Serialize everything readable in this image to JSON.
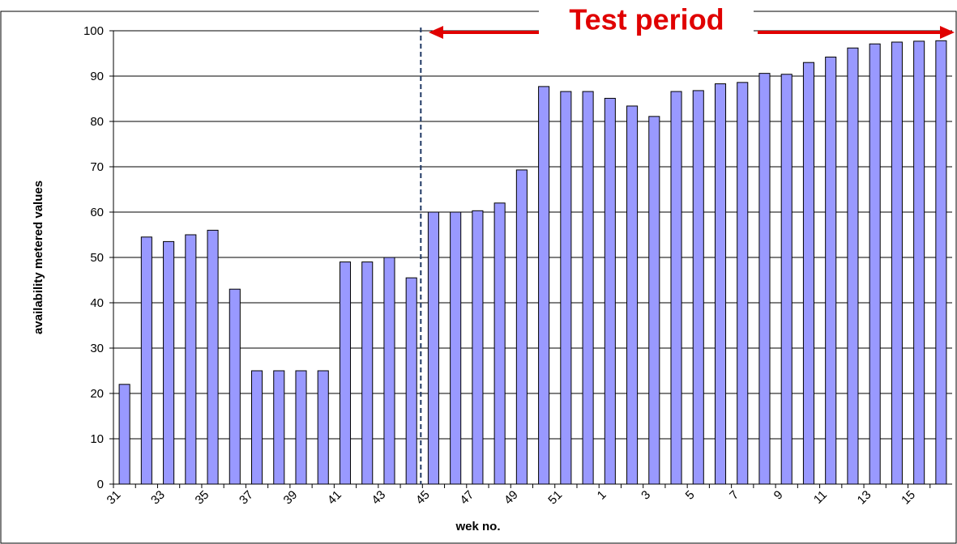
{
  "chart_data": {
    "type": "bar",
    "title": "Test period",
    "x_label": "wek no.",
    "y_label": "availability metered values",
    "categories": [
      "31",
      null,
      "33",
      null,
      "35",
      null,
      "37",
      null,
      "39",
      null,
      "41",
      null,
      "43",
      null,
      "45",
      null,
      "47",
      null,
      "49",
      null,
      "51",
      null,
      "1",
      null,
      "3",
      null,
      "5",
      null,
      "7",
      null,
      "9",
      null,
      "11",
      null,
      "13",
      null,
      "15",
      null
    ],
    "values": [
      22,
      54.5,
      53.5,
      55,
      56,
      43,
      25,
      25,
      25,
      25,
      49,
      49,
      50,
      45.5,
      60,
      60,
      60.3,
      62,
      69.3,
      87.7,
      86.6,
      86.6,
      85.1,
      83.4,
      81.1,
      86.6,
      86.8,
      88.3,
      88.6,
      90.6,
      90.4,
      93,
      94.2,
      96.2,
      97.1,
      97.5,
      97.7,
      97.8
    ],
    "color": "#9999ff",
    "ylim": [
      0,
      100
    ],
    "yticks": [
      0,
      10,
      20,
      30,
      40,
      50,
      60,
      70,
      80,
      90,
      100
    ],
    "grid": true
  }
}
